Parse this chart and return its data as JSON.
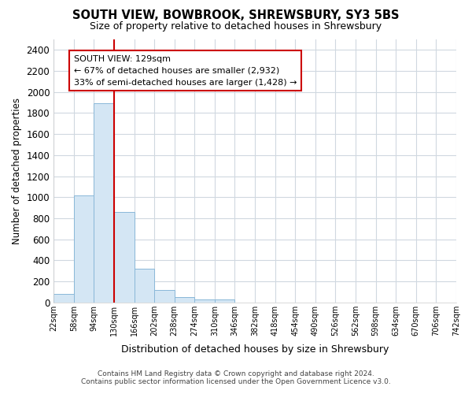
{
  "title": "SOUTH VIEW, BOWBROOK, SHREWSBURY, SY3 5BS",
  "subtitle": "Size of property relative to detached houses in Shrewsbury",
  "xlabel": "Distribution of detached houses by size in Shrewsbury",
  "ylabel": "Number of detached properties",
  "bar_values": [
    80,
    1020,
    1890,
    860,
    320,
    120,
    50,
    30,
    25,
    0,
    0,
    0,
    0,
    0,
    0,
    0,
    0,
    0,
    0,
    0
  ],
  "bin_edges": [
    22,
    58,
    94,
    130,
    166,
    202,
    238,
    274,
    310,
    346,
    382,
    418,
    454,
    490,
    526,
    562,
    598,
    634,
    670,
    706,
    742
  ],
  "bin_labels": [
    "22sqm",
    "58sqm",
    "94sqm",
    "130sqm",
    "166sqm",
    "202sqm",
    "238sqm",
    "274sqm",
    "310sqm",
    "346sqm",
    "382sqm",
    "418sqm",
    "454sqm",
    "490sqm",
    "526sqm",
    "562sqm",
    "598sqm",
    "634sqm",
    "670sqm",
    "706sqm",
    "742sqm"
  ],
  "bar_color": "#d4e6f4",
  "bar_edge_color": "#8ab8d8",
  "property_line_x": 130,
  "property_line_color": "#cc0000",
  "annotation_text": "SOUTH VIEW: 129sqm\n← 67% of detached houses are smaller (2,932)\n33% of semi-detached houses are larger (1,428) →",
  "annotation_box_color": "#ffffff",
  "annotation_box_edge": "#cc0000",
  "ylim": [
    0,
    2500
  ],
  "yticks": [
    0,
    200,
    400,
    600,
    800,
    1000,
    1200,
    1400,
    1600,
    1800,
    2000,
    2200,
    2400
  ],
  "footer_line1": "Contains HM Land Registry data © Crown copyright and database right 2024.",
  "footer_line2": "Contains public sector information licensed under the Open Government Licence v3.0.",
  "bg_color": "#ffffff",
  "plot_bg_color": "#ffffff",
  "grid_color": "#d0d8e0"
}
